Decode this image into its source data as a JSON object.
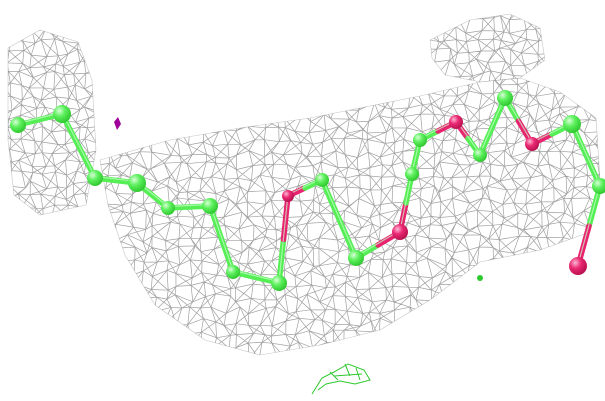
{
  "viewer": {
    "background": "#ffffff",
    "mesh_color": "#8f8f8f",
    "carbon_color": "#55ee55",
    "oxygen_color": "#e8236f",
    "bond_highlight": "#c9ffc9",
    "stray_mesh_color": "#2ec92e",
    "stray_magenta_color": "#a0009a"
  },
  "molecule": {
    "representation": "ball-and-stick",
    "density_map": "mesh"
  }
}
